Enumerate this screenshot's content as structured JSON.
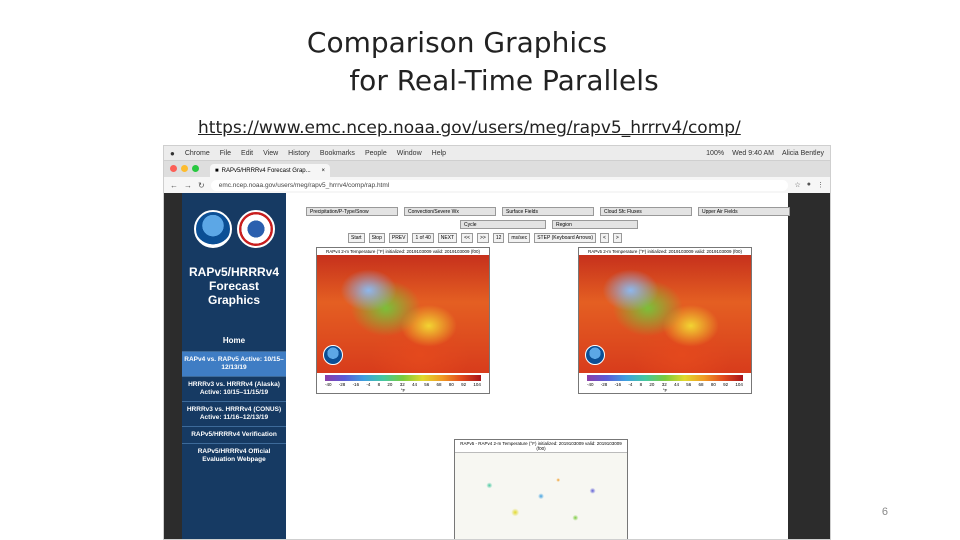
{
  "slide": {
    "title_line1": "Comparison Graphics",
    "title_line2": "for Real-Time Parallels",
    "url": "https://www.emc.ncep.noaa.gov/users/meg/rapv5_hrrrv4/comp/",
    "page_number": "6"
  },
  "colors": {
    "sidebar": "#163a63",
    "active_nav": "#3f7dc4"
  },
  "screenshot": {
    "menubar": {
      "app": "Chrome",
      "items": [
        "File",
        "Edit",
        "View",
        "History",
        "Bookmarks",
        "People",
        "Window",
        "Help"
      ],
      "status": [
        "100%",
        "Wed 9:40 AM",
        "Alicia Bentley"
      ]
    },
    "tab": {
      "title": "RAPv5/HRRRv4 Forecast Grap...",
      "close": "×"
    },
    "address": {
      "url": "emc.ncep.noaa.gov/users/meg/rapv5_hrrrv4/comp/rap.html"
    },
    "sidebar": {
      "title": "RAPv5/HRRRv4 Forecast Graphics",
      "nav": [
        "Home",
        "RAPv4 vs. RAPv5 Active: 10/15–12/13/19",
        "HRRRv3 vs. HRRRv4 (Alaska) Active: 10/15–11/15/19",
        "HRRRv3 vs. HRRRv4 (CONUS) Active: 11/16–12/13/19",
        "RAPv5/HRRRv4 Verification",
        "RAPv5/HRRRv4 Official Evaluation Webpage"
      ]
    },
    "controls": {
      "row1": [
        "Precipitation/P-Type/Snow",
        "Convection/Severe Wx",
        "Surface Fields",
        "Cloud Sfc Fluxes",
        "Upper Air Fields"
      ],
      "row2": [
        "Cycle",
        "Region"
      ],
      "row3": [
        "Start",
        "Stop",
        "PREV",
        "1 of 40",
        "NEXT",
        "<<",
        ">>",
        "12",
        "ms/sec",
        "STEP (Keyboard Arrows)",
        "<",
        ">"
      ]
    },
    "maps": {
      "left_caption": "RAPv4 2-m Temperature (°F) initialized: 2019103009 valid: 2019103009 (f00)",
      "right_caption": "RAPv5 2-m Temperature (°F) initialized: 2019103009 valid: 2019103009 (f00)",
      "diff_caption": "RAPv5 - RAPv4 2-m Temperature (°F) initialized: 2019103009 valid: 2019103009 (f00)",
      "ticks": [
        "-40",
        "-28",
        "-16",
        "-4",
        "8",
        "20",
        "32",
        "44",
        "56",
        "68",
        "80",
        "92",
        "104"
      ],
      "unit": "°F"
    }
  }
}
